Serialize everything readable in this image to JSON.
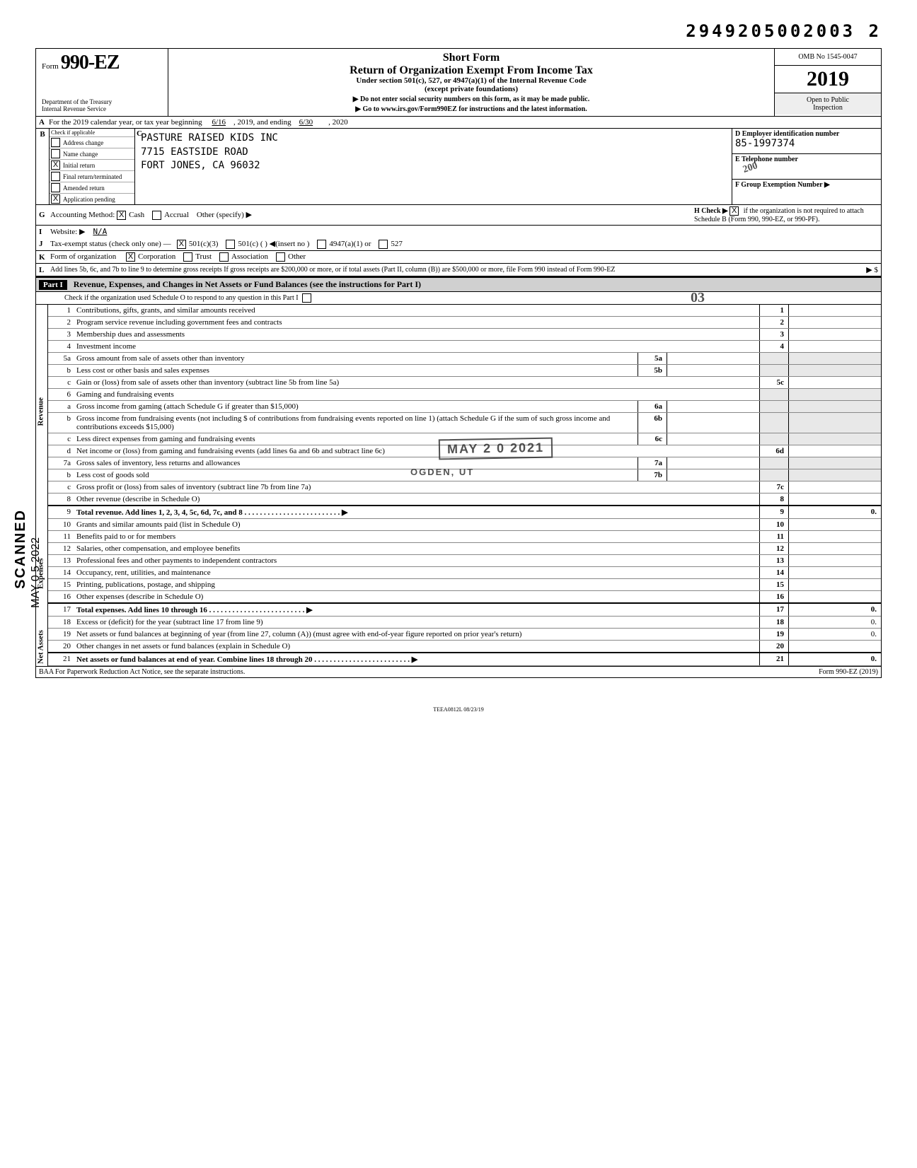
{
  "tracking_number": "2949205002003 2",
  "header": {
    "form_prefix": "Form",
    "form_number": "990-EZ",
    "title_line1": "Short Form",
    "title_line2": "Return of Organization Exempt From Income Tax",
    "subtitle1": "Under section 501(c), 527, or 4947(a)(1) of the Internal Revenue Code",
    "subtitle2": "(except private foundations)",
    "arrow1": "▶ Do not enter social security numbers on this form, as it may be made public.",
    "arrow2": "▶ Go to www.irs.gov/Form990EZ for instructions and the latest information.",
    "dept1": "Department of the Treasury",
    "dept2": "Internal Revenue Service",
    "omb": "OMB No  1545-0047",
    "year": "2019",
    "inspection1": "Open to Public",
    "inspection2": "Inspection"
  },
  "rowA": {
    "label": "A",
    "text": "For the 2019 calendar year, or tax year beginning",
    "begin": "6/16",
    "mid": ", 2019, and ending",
    "end": "6/30",
    "tail": ", 2020"
  },
  "rowB": {
    "label": "B",
    "check_label": "Check if applicable",
    "checks": [
      {
        "label": "Address change",
        "checked": false
      },
      {
        "label": "Name change",
        "checked": false
      },
      {
        "label": "Initial return",
        "checked": true
      },
      {
        "label": "Final return/terminated",
        "checked": false
      },
      {
        "label": "Amended return",
        "checked": false
      },
      {
        "label": "Application pending",
        "checked": true
      }
    ],
    "name_line1": "PASTURE RAISED KIDS INC",
    "name_line2": "7715 EASTSIDE ROAD",
    "name_line3": "FORT JONES, CA 96032",
    "c_label": "C"
  },
  "rowDEF": {
    "d_label": "D  Employer identification number",
    "d_value": "85-1997374",
    "e_label": "E  Telephone number",
    "e_value": "",
    "f_label": "F  Group Exemption Number ▶",
    "f_value": ""
  },
  "rowG": {
    "label": "G",
    "text": "Accounting Method:",
    "cash_checked": true,
    "cash": "Cash",
    "accrual_checked": false,
    "accrual": "Accrual",
    "other": "Other (specify) ▶",
    "h_label": "H  Check ▶",
    "h_checked": true,
    "h_text": "if the organization is not required to attach Schedule B (Form 990, 990-EZ, or 990-PF)."
  },
  "rowI": {
    "label": "I",
    "text": "Website: ▶",
    "value": "N/A"
  },
  "rowJ": {
    "label": "J",
    "text": "Tax-exempt status (check only one) —",
    "opt1_checked": true,
    "opt1": "501(c)(3)",
    "opt2": "501(c) (          ) ◀(insert no )",
    "opt3": "4947(a)(1) or",
    "opt4": "527"
  },
  "rowK": {
    "label": "K",
    "text": "Form of organization",
    "corp_checked": true,
    "corp": "Corporation",
    "trust": "Trust",
    "assoc": "Association",
    "other": "Other"
  },
  "rowL": {
    "label": "L",
    "text": "Add lines 5b, 6c, and 7b to line 9 to determine gross receipts  If gross receipts are $200,000 or more, or if total assets (Part II, column (B)) are $500,000 or more, file Form 990 instead of Form 990-EZ",
    "arrow": "▶ $"
  },
  "part1": {
    "label": "Part I",
    "title": "Revenue, Expenses, and Changes in Net Assets or Fund Balances (see the instructions for Part I)",
    "sub": "Check if the organization used Schedule O to respond to any question in this Part I"
  },
  "side_scanned": "SCANNED",
  "side_date": "MAY 0 5 2022",
  "stamps": {
    "received": "MAY 2 0 2021",
    "agency": "OGDEN, UT",
    "corner_200": "200",
    "mini": "03"
  },
  "sections": {
    "revenue": "Revenue",
    "expenses": "Expenses",
    "netassets": "Net Assets"
  },
  "lines": [
    {
      "section": "revenue",
      "n": "1",
      "desc": "Contributions, gifts, grants, and similar amounts received",
      "num": "1",
      "amt": ""
    },
    {
      "section": "revenue",
      "n": "2",
      "desc": "Program service revenue including government fees and contracts",
      "num": "2",
      "amt": ""
    },
    {
      "section": "revenue",
      "n": "3",
      "desc": "Membership dues and assessments",
      "num": "3",
      "amt": ""
    },
    {
      "section": "revenue",
      "n": "4",
      "desc": "Investment income",
      "num": "4",
      "amt": ""
    },
    {
      "section": "revenue",
      "n": "5a",
      "desc": "Gross amount from sale of assets other than inventory",
      "num": "5a",
      "amt": "",
      "inner": true
    },
    {
      "section": "revenue",
      "n": "b",
      "desc": "Less  cost or other basis and sales expenses",
      "num": "5b",
      "amt": "",
      "inner": true
    },
    {
      "section": "revenue",
      "n": "c",
      "desc": "Gain or (loss) from sale of assets other than inventory (subtract line 5b from line 5a)",
      "num": "5c",
      "amt": ""
    },
    {
      "section": "revenue",
      "n": "6",
      "desc": "Gaming and fundraising events",
      "num": "",
      "amt": "",
      "noamt": true
    },
    {
      "section": "revenue",
      "n": "a",
      "desc": "Gross income from gaming (attach Schedule G if greater than $15,000)",
      "num": "6a",
      "amt": "",
      "inner": true
    },
    {
      "section": "revenue",
      "n": "b",
      "desc": "Gross income from fundraising events (not including $                       of contributions from fundraising events reported on line 1) (attach Schedule G if the sum of such gross income and contributions exceeds $15,000)",
      "num": "6b",
      "amt": "",
      "inner": true
    },
    {
      "section": "revenue",
      "n": "c",
      "desc": "Less  direct expenses from gaming and fundraising events",
      "num": "6c",
      "amt": "",
      "inner": true
    },
    {
      "section": "revenue",
      "n": "d",
      "desc": "Net income or (loss) from gaming and fundraising events (add lines 6a and 6b and subtract line 6c)",
      "num": "6d",
      "amt": ""
    },
    {
      "section": "revenue",
      "n": "7a",
      "desc": "Gross sales of inventory, less returns and allowances",
      "num": "7a",
      "amt": "",
      "inner": true
    },
    {
      "section": "revenue",
      "n": "b",
      "desc": "Less  cost of goods sold",
      "num": "7b",
      "amt": "",
      "inner": true
    },
    {
      "section": "revenue",
      "n": "c",
      "desc": "Gross profit or (loss) from sales of inventory (subtract line 7b from line 7a)",
      "num": "7c",
      "amt": ""
    },
    {
      "section": "revenue",
      "n": "8",
      "desc": "Other revenue (describe in Schedule O)",
      "num": "8",
      "amt": ""
    },
    {
      "section": "revenue",
      "n": "9",
      "desc": "Total revenue. Add lines 1, 2, 3, 4, 5c, 6d, 7c, and 8",
      "num": "9",
      "amt": "0.",
      "bold": true,
      "arrow": true
    },
    {
      "section": "expenses",
      "n": "10",
      "desc": "Grants and similar amounts paid (list in Schedule O)",
      "num": "10",
      "amt": ""
    },
    {
      "section": "expenses",
      "n": "11",
      "desc": "Benefits paid to or for members",
      "num": "11",
      "amt": ""
    },
    {
      "section": "expenses",
      "n": "12",
      "desc": "Salaries, other compensation, and employee benefits",
      "num": "12",
      "amt": ""
    },
    {
      "section": "expenses",
      "n": "13",
      "desc": "Professional fees and other payments to independent contractors",
      "num": "13",
      "amt": ""
    },
    {
      "section": "expenses",
      "n": "14",
      "desc": "Occupancy, rent, utilities, and maintenance",
      "num": "14",
      "amt": ""
    },
    {
      "section": "expenses",
      "n": "15",
      "desc": "Printing, publications, postage, and shipping",
      "num": "15",
      "amt": ""
    },
    {
      "section": "expenses",
      "n": "16",
      "desc": "Other expenses (describe in Schedule O)",
      "num": "16",
      "amt": ""
    },
    {
      "section": "expenses",
      "n": "17",
      "desc": "Total expenses. Add lines 10 through 16",
      "num": "17",
      "amt": "0.",
      "bold": true,
      "arrow": true
    },
    {
      "section": "expenses",
      "n": "18",
      "desc": "Excess or (deficit) for the year (subtract line 17 from line 9)",
      "num": "18",
      "amt": "0."
    },
    {
      "section": "netassets",
      "n": "19",
      "desc": "Net assets or fund balances at beginning of year (from line 27, column (A)) (must agree with end-of-year figure reported on prior year's return)",
      "num": "19",
      "amt": "0."
    },
    {
      "section": "netassets",
      "n": "20",
      "desc": "Other changes in net assets or fund balances (explain in Schedule O)",
      "num": "20",
      "amt": ""
    },
    {
      "section": "netassets",
      "n": "21",
      "desc": "Net assets or fund balances at end of year. Combine lines 18 through 20",
      "num": "21",
      "amt": "0.",
      "bold": true,
      "arrow": true
    }
  ],
  "footer": {
    "left": "BAA  For Paperwork Reduction Act Notice, see the separate instructions.",
    "right": "Form 990-EZ (2019)",
    "center": "TEEA0812L   08/23/19"
  }
}
